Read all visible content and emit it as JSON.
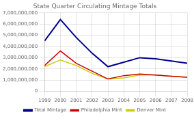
{
  "chart_data": {
    "type": "line",
    "title": "State Quarter Circulating Mintage Totals",
    "x": [
      1999,
      2000,
      2001,
      2002,
      2003,
      2004,
      2005,
      2006,
      2007,
      2008
    ],
    "series": [
      {
        "name": "Total Mintage",
        "color": "#00008B",
        "values": [
          4500000000,
          6400000000,
          4800000000,
          3400000000,
          2200000000,
          2600000000,
          3000000000,
          2900000000,
          2700000000,
          2500000000
        ]
      },
      {
        "name": "Philadelphia Mint",
        "color": "#CC0000",
        "values": [
          2300000000,
          3600000000,
          2500000000,
          1800000000,
          1100000000,
          1400000000,
          1550000000,
          1450000000,
          1350000000,
          1250000000
        ]
      },
      {
        "name": "Denver Mint",
        "color": "#CCCC00",
        "values": [
          2200000000,
          2800000000,
          2300000000,
          1600000000,
          1100000000,
          1200000000,
          1450000000,
          1450000000,
          1350000000,
          1250000000
        ]
      }
    ],
    "xlim": [
      1999,
      2008
    ],
    "xticks": [
      1999,
      2000,
      2001,
      2002,
      2003,
      2004,
      2005,
      2006,
      2007,
      2008
    ],
    "ylim": [
      0,
      7000000000
    ],
    "yticks": [
      0,
      {
        "value": 1000000000,
        "label": "1,000,000,000"
      },
      {
        "value": 2000000000,
        "label": "2,000,000,000"
      },
      {
        "value": 3000000000,
        "label": "3,000,000,000"
      },
      {
        "value": 4000000000,
        "label": "4,000,000,000"
      },
      {
        "value": 5000000000,
        "label": "5,000,000,000"
      },
      {
        "value": 6000000000,
        "label": "6,000,000,000"
      },
      {
        "value": 7000000000,
        "label": "7,000,000,000"
      }
    ],
    "grid": true,
    "legend": "bottom"
  }
}
